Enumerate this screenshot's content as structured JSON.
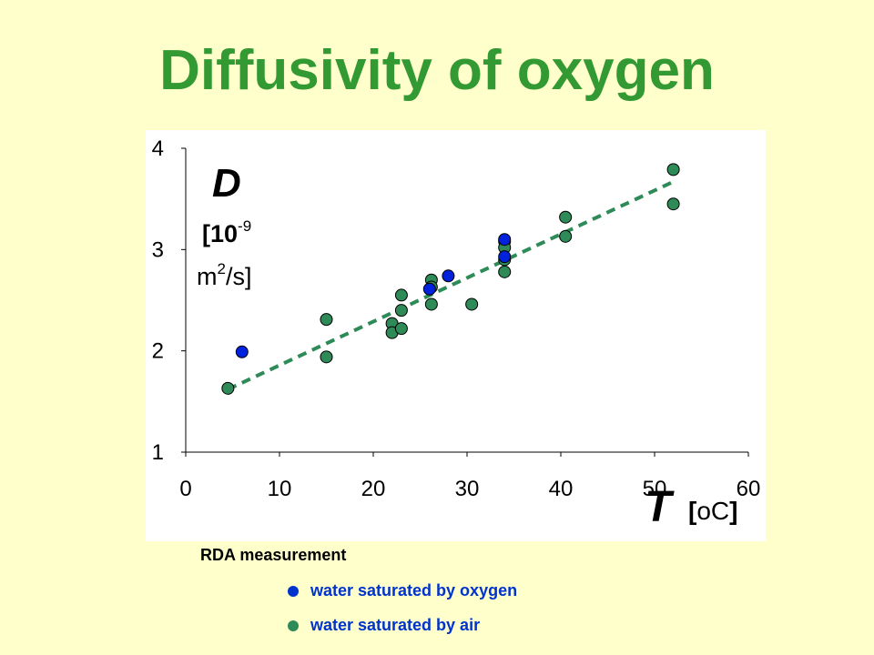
{
  "slide": {
    "title": "Diffusivity of oxygen"
  },
  "chart_data": {
    "type": "scatter",
    "title": "",
    "xlabel": "T",
    "xlabel_unit_open": "[",
    "xlabel_unit": "oC",
    "xlabel_unit_close": "]",
    "ylabel": "D",
    "ylabel_unit_line1": "[10",
    "ylabel_unit_exp1": "-9",
    "ylabel_unit_line2_a": "m",
    "ylabel_unit_exp2": "2",
    "ylabel_unit_line2_b": "/s]",
    "xlim": [
      0,
      60
    ],
    "ylim": [
      1,
      4
    ],
    "x_ticks": [
      "0",
      "10",
      "20",
      "30",
      "40",
      "50",
      "60"
    ],
    "y_ticks": [
      "1",
      "2",
      "3",
      "4"
    ],
    "grid": false,
    "series": [
      {
        "name": "water saturated by air",
        "color": "#2e8b57",
        "points": [
          [
            4.5,
            1.63
          ],
          [
            15,
            2.31
          ],
          [
            15,
            1.94
          ],
          [
            22,
            2.27
          ],
          [
            22,
            2.18
          ],
          [
            23,
            2.55
          ],
          [
            23,
            2.4
          ],
          [
            23,
            2.22
          ],
          [
            26.2,
            2.7
          ],
          [
            26.2,
            2.63
          ],
          [
            26.2,
            2.46
          ],
          [
            30.5,
            2.46
          ],
          [
            34,
            3.08
          ],
          [
            34,
            3.02
          ],
          [
            34,
            2.9
          ],
          [
            34,
            2.78
          ],
          [
            40.5,
            3.32
          ],
          [
            40.5,
            3.13
          ],
          [
            52,
            3.79
          ],
          [
            52,
            3.45
          ]
        ]
      },
      {
        "name": "water saturated by oxygen",
        "color": "#0022dd",
        "points": [
          [
            6,
            1.99
          ],
          [
            26,
            2.61
          ],
          [
            28,
            2.74
          ],
          [
            34,
            3.1
          ],
          [
            34,
            2.93
          ]
        ]
      }
    ],
    "trendline": {
      "style": "dashed",
      "color": "#2e8b57",
      "from": [
        4.5,
        1.62
      ],
      "to": [
        52,
        3.67
      ]
    }
  },
  "legend": {
    "title": "RDA measurement",
    "items": [
      {
        "label": "water saturated by oxygen",
        "color": "#0033cc"
      },
      {
        "label": "water saturated by air",
        "color": "#2e8b57"
      }
    ]
  }
}
